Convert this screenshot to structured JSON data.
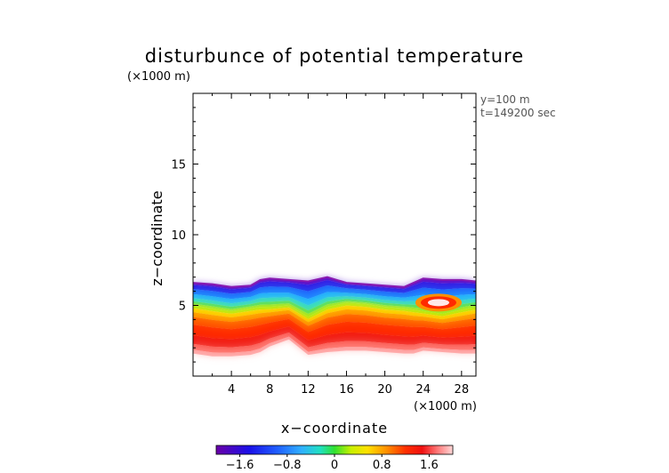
{
  "chart_data": {
    "type": "heatmap",
    "title": "disturbunce of potential temperature",
    "y_unit": "(×1000 m)",
    "x_unit": "(×1000 m)",
    "xlabel": "x−coordinate",
    "ylabel": "z−coordinate",
    "annotations": [
      "y=100 m",
      "t=149200 sec"
    ],
    "xlim": [
      0,
      29.5
    ],
    "ylim": [
      0,
      20
    ],
    "x_ticks": [
      4,
      8,
      12,
      16,
      20,
      24,
      28
    ],
    "x_tick_labels": [
      "4",
      "8",
      "12",
      "16",
      "20",
      "24",
      "28"
    ],
    "y_ticks": [
      5,
      10,
      15
    ],
    "y_tick_labels": [
      "5",
      "10",
      "15"
    ],
    "colorbar": {
      "min": -2.0,
      "max": 2.0,
      "ticks": [
        -1.6,
        -0.8,
        0,
        0.8,
        1.6
      ],
      "tick_labels": [
        "−1.6",
        "−0.8",
        "0",
        "0.8",
        "1.6"
      ]
    },
    "field_profile": {
      "x": [
        0,
        2,
        4,
        6,
        7,
        8,
        10,
        12,
        14,
        16,
        18,
        20,
        22,
        23,
        24,
        26,
        28,
        29.5
      ],
      "top": [
        6.6,
        6.5,
        6.3,
        6.4,
        6.8,
        6.9,
        6.8,
        6.7,
        7.0,
        6.6,
        6.5,
        6.4,
        6.3,
        6.6,
        6.9,
        6.8,
        6.8,
        6.7
      ],
      "bottom": [
        1.6,
        1.4,
        1.4,
        1.5,
        1.7,
        2.1,
        2.6,
        1.5,
        1.7,
        1.8,
        1.8,
        1.7,
        1.6,
        1.6,
        1.8,
        1.7,
        1.6,
        1.6
      ],
      "cold_base": [
        5.0,
        4.8,
        4.6,
        4.8,
        4.9,
        4.9,
        5.0,
        4.2,
        4.9,
        5.2,
        5.1,
        4.9,
        4.8,
        4.7,
        4.6,
        4.4,
        4.7,
        4.9
      ]
    }
  }
}
